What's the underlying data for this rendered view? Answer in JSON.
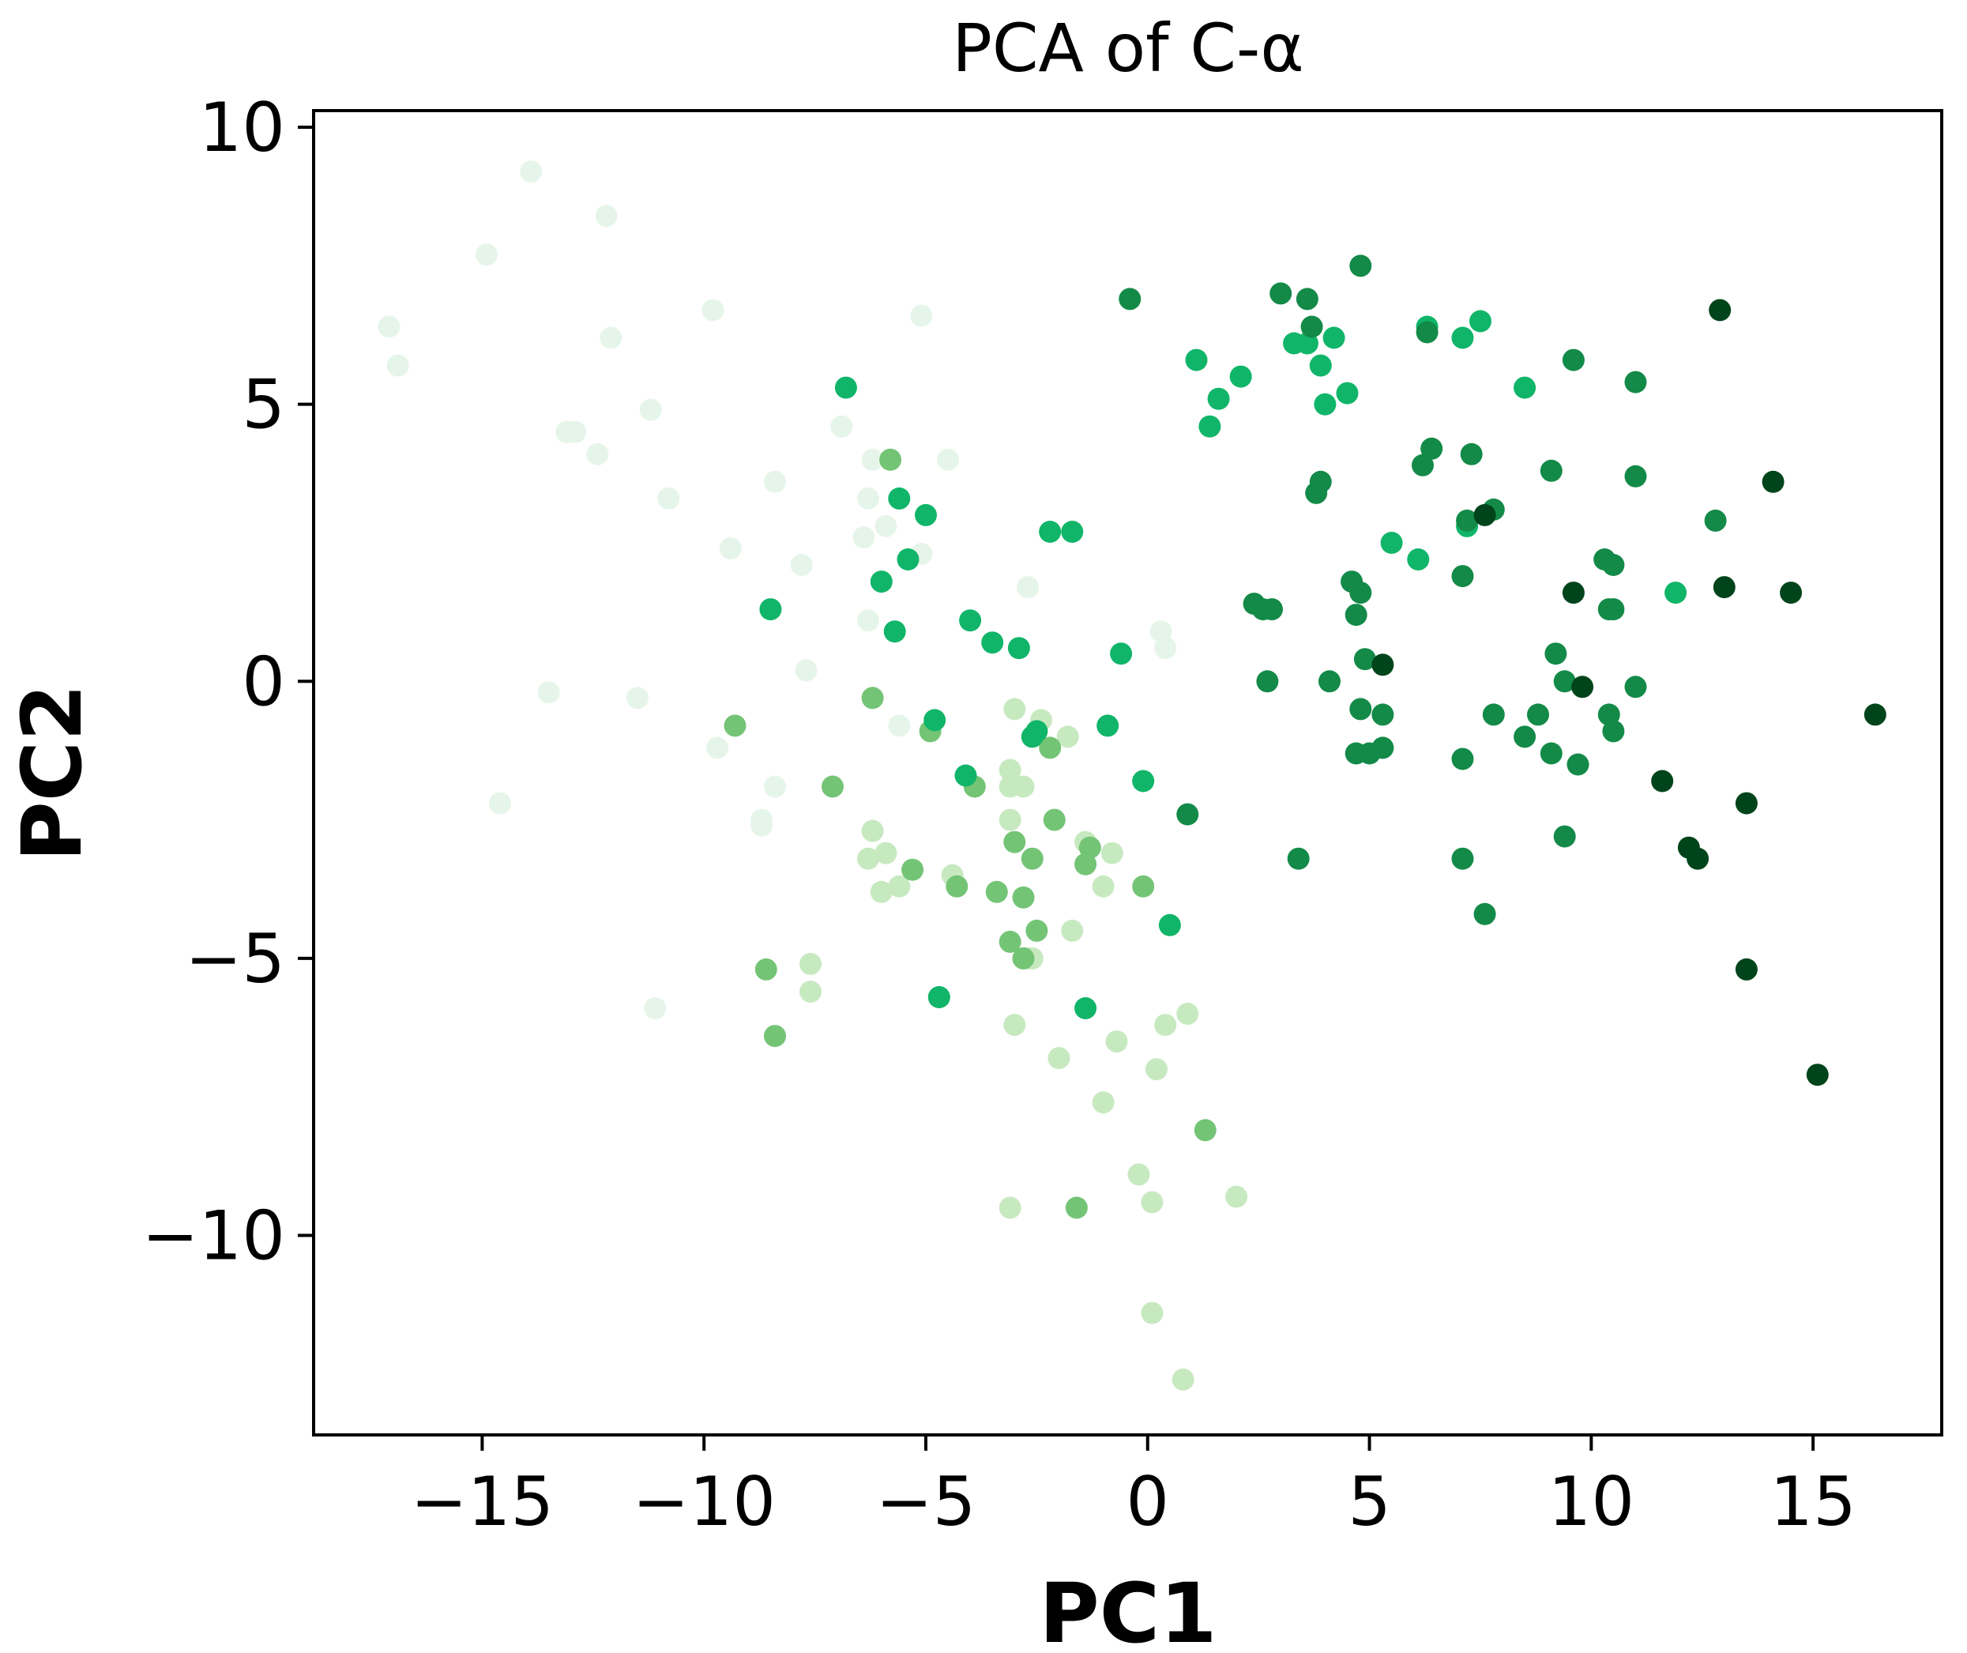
{
  "chart_data": {
    "type": "scatter",
    "title": "PCA of C-α",
    "xlabel": "PC1",
    "ylabel": "PC2",
    "xlim": [
      -18.8,
      17.9
    ],
    "ylim": [
      -13.6,
      10.3
    ],
    "xticks": [
      -15,
      -10,
      -5,
      0,
      5,
      10,
      15
    ],
    "yticks": [
      -10,
      -5,
      0,
      5,
      10
    ],
    "xtick_labels": [
      "−15",
      "−10",
      "−5",
      "0",
      "5",
      "10",
      "15"
    ],
    "ytick_labels": [
      "−10",
      "−5",
      "0",
      "5",
      "10"
    ],
    "grid": false,
    "legend": "none",
    "colormap": "Greens (by frame order)",
    "point_colors": {
      "very_light": "#e6f5e9",
      "light": "#c7e9c0",
      "mid": "#74c476",
      "bright": "#10b569",
      "dark": "#138a48",
      "darkest": "#00441b"
    },
    "series": [
      {
        "color_key": "very_light",
        "x": [
          -13.9,
          -12.2,
          -14.9,
          -17.1,
          -16.9,
          -12.1,
          -9.8,
          -5.1,
          -11.2,
          -12.9,
          -13.1,
          -12.4,
          -10.8,
          -8.4,
          -6.9,
          -9.4,
          -7.8,
          -6.3,
          -13.5,
          -11.5,
          -14.6,
          -9.7,
          -8.7,
          -11.1,
          -6.4,
          -5.9,
          -5.1,
          -6.3,
          -4.5,
          -2.7,
          -6.2,
          0.3,
          0.4,
          -7.7,
          -8.4,
          -5.6,
          -8.7
        ],
        "y": [
          9.2,
          8.4,
          7.7,
          6.4,
          5.7,
          6.2,
          6.7,
          6.6,
          4.9,
          4.5,
          4.5,
          4.1,
          3.3,
          3.6,
          4.6,
          2.4,
          2.1,
          3.3,
          -0.2,
          -0.3,
          -2.2,
          -1.2,
          -2.6,
          -5.9,
          2.6,
          2.8,
          2.3,
          1.1,
          4.0,
          1.7,
          4.0,
          0.9,
          0.6,
          0.2,
          -1.9,
          -0.8,
          -2.5
        ]
      },
      {
        "color_key": "light",
        "x": [
          -6.2,
          -5.9,
          -6.3,
          -5.6,
          -6.0,
          -7.6,
          -7.6,
          -4.4,
          -3.0,
          -3.1,
          -2.8,
          -2.4,
          -1.8,
          -3.1,
          -2.6,
          -1.4,
          -1.4,
          -0.8,
          -1.0,
          -3.1,
          -2.7,
          -1.7,
          -2.0,
          -0.7,
          0.4,
          0.2,
          -3.0,
          -0.2,
          0.1,
          2.0,
          0.1,
          0.8,
          -1.0,
          0.9,
          -3.1
        ],
        "y": [
          -2.7,
          -3.1,
          -3.2,
          -3.7,
          -3.8,
          -5.1,
          -5.6,
          -3.5,
          -0.5,
          -1.6,
          -1.9,
          -0.7,
          -1.0,
          -1.9,
          -5.0,
          -2.9,
          -3.3,
          -3.1,
          -3.7,
          -2.5,
          -5.0,
          -4.5,
          -6.8,
          -6.5,
          -6.2,
          -7.0,
          -6.2,
          -8.9,
          -9.4,
          -9.3,
          -11.4,
          -12.6,
          -7.6,
          -6.0,
          -9.5
        ]
      },
      {
        "color_key": "mid",
        "x": [
          -5.8,
          -6.2,
          -9.3,
          -7.1,
          -3.9,
          -2.2,
          -4.3,
          -3.0,
          -2.6,
          -2.1,
          -2.5,
          -1.4,
          -2.8,
          -1.3,
          -3.1,
          -4.9,
          -5.3,
          -3.4,
          -0.1,
          -2.8,
          -8.6,
          -8.4,
          -4.7,
          -1.6,
          1.3
        ],
        "y": [
          4.0,
          -0.3,
          -0.8,
          -1.9,
          -1.9,
          -1.2,
          -3.7,
          -2.9,
          -3.2,
          -2.5,
          -4.5,
          -3.3,
          -3.9,
          -3.0,
          -4.7,
          -0.9,
          -3.4,
          -3.8,
          -3.7,
          -5.0,
          -5.2,
          -6.4,
          -5.7,
          -9.5,
          -8.1
        ]
      },
      {
        "color_key": "bright",
        "x": [
          -6.8,
          -5.6,
          -5.0,
          -5.4,
          -6.0,
          -8.5,
          -5.7,
          -4.1,
          -3.5,
          -2.9,
          -2.2,
          -1.7,
          -0.6,
          -4.8,
          -2.5,
          -2.6,
          -4.0,
          -0.9,
          -0.1,
          -1.4,
          -4.7,
          0.5,
          2.1,
          1.1,
          3.3,
          3.6,
          4.2,
          3.9,
          6.3,
          7.5,
          8.5,
          7.1,
          5.5,
          7.2,
          6.1,
          11.9,
          1.6,
          1.4,
          4.5,
          4.0
        ],
        "y": [
          5.3,
          3.3,
          3.0,
          2.2,
          1.8,
          1.3,
          0.9,
          -1.7,
          0.7,
          0.6,
          2.7,
          2.7,
          0.5,
          -0.7,
          -0.9,
          -1.0,
          1.1,
          -0.8,
          -1.8,
          -5.9,
          -5.7,
          -4.4,
          5.5,
          5.8,
          6.1,
          6.1,
          6.2,
          5.7,
          6.4,
          6.5,
          5.3,
          6.2,
          2.5,
          2.8,
          2.2,
          1.6,
          5.1,
          4.6,
          5.2,
          5.0
        ]
      },
      {
        "color_key": "dark",
        "x": [
          -0.4,
          0.9,
          2.8,
          3.6,
          3.0,
          3.7,
          3.9,
          3.8,
          4.8,
          6.3,
          7.3,
          7.8,
          6.4,
          6.2,
          7.1,
          9.1,
          9.6,
          11.0,
          4.6,
          4.8,
          4.7,
          4.9,
          4.8,
          5.3,
          5.0,
          5.3,
          4.7,
          2.7,
          4.1,
          7.1,
          7.8,
          8.5,
          9.1,
          8.8,
          9.7,
          9.2,
          9.4,
          10.4,
          10.5,
          10.4,
          10.5,
          10.3,
          11.0,
          11.0,
          12.8,
          3.4,
          7.1,
          7.6,
          9.4,
          2.4,
          7.2,
          10.5,
          2.6
        ],
        "y": [
          6.9,
          -2.4,
          1.3,
          6.9,
          7.0,
          6.4,
          3.6,
          3.4,
          7.5,
          6.3,
          4.1,
          3.1,
          4.2,
          3.9,
          1.9,
          3.8,
          5.8,
          5.4,
          1.8,
          1.6,
          1.2,
          0.4,
          -0.5,
          -0.6,
          -1.3,
          -1.2,
          -1.3,
          0.0,
          0.0,
          -1.4,
          -0.6,
          -1.0,
          -1.3,
          -0.6,
          -1.5,
          0.5,
          0.0,
          -0.6,
          -0.9,
          1.3,
          2.1,
          2.2,
          3.7,
          -0.1,
          2.9,
          -3.2,
          -3.2,
          -4.2,
          -2.8,
          1.4,
          2.9,
          1.3,
          1.3
        ]
      },
      {
        "color_key": "darkest",
        "x": [
          12.9,
          14.1,
          13.0,
          14.5,
          9.6,
          5.3,
          9.8,
          11.6,
          13.5,
          12.2,
          12.4,
          13.5,
          15.1,
          16.4,
          7.6
        ],
        "y": [
          6.7,
          3.6,
          1.7,
          1.6,
          1.6,
          0.3,
          -0.1,
          -1.8,
          -2.2,
          -3.0,
          -3.2,
          -5.2,
          -7.1,
          -0.6,
          3.0
        ]
      }
    ]
  }
}
